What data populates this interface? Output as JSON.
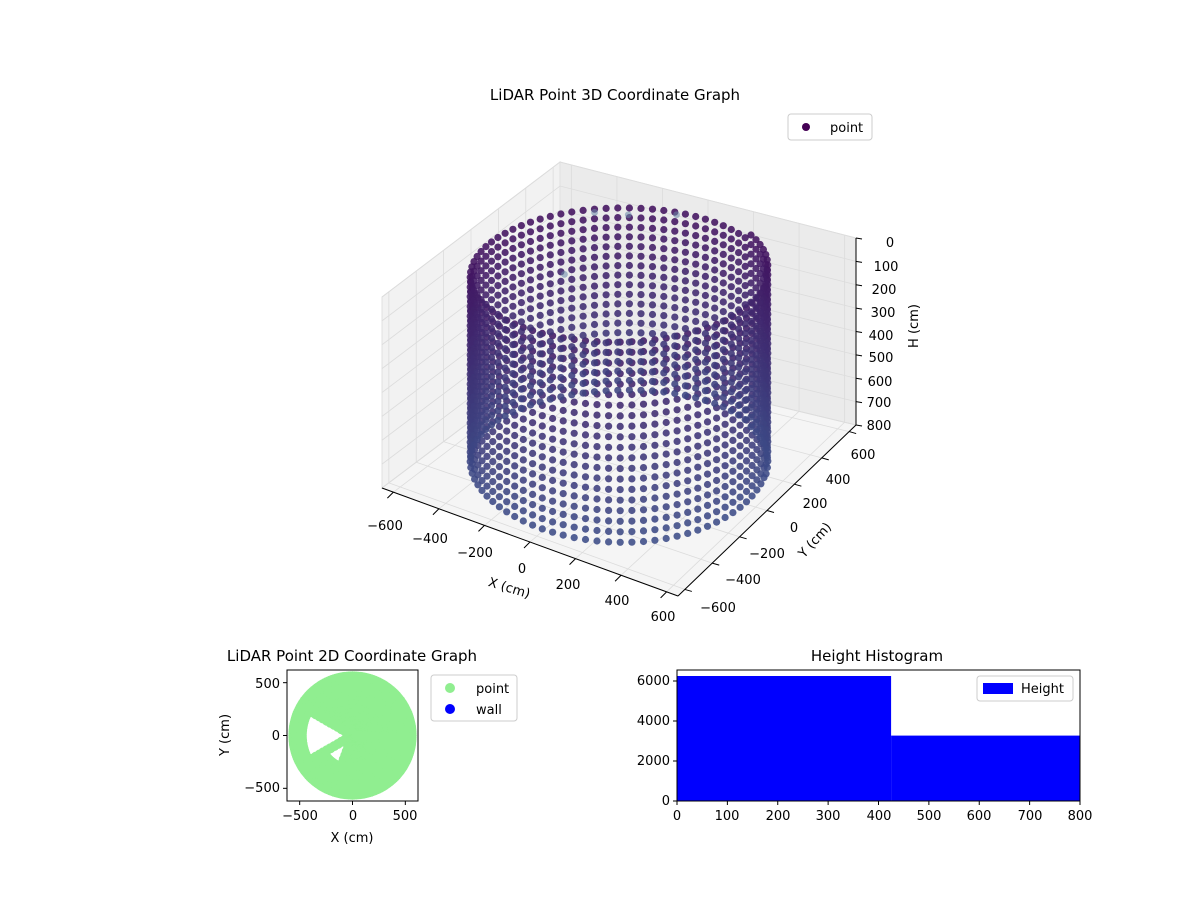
{
  "figure": {
    "chart3d": {
      "title": "LiDAR Point 3D Coordinate Graph",
      "xlabel": "X (cm)",
      "ylabel": "Y (cm)",
      "zlabel": "H (cm)",
      "legend": "point",
      "xticks": [
        "−600",
        "−400",
        "−200",
        "0",
        "200",
        "400",
        "600"
      ],
      "yticks": [
        "−600",
        "−400",
        "−200",
        "0",
        "200",
        "400",
        "600"
      ],
      "zticks": [
        "0",
        "100",
        "200",
        "300",
        "400",
        "500",
        "600",
        "700",
        "800"
      ]
    },
    "chart2d": {
      "title": "LiDAR Point 2D Coordinate Graph",
      "xlabel": "X (cm)",
      "ylabel": "Y (cm)",
      "legend": [
        "point",
        "wall"
      ],
      "xticks": [
        "−500",
        "0",
        "500"
      ],
      "yticks": [
        "500",
        "0",
        "−500"
      ]
    },
    "hist": {
      "title": "Height Histogram",
      "legend": "Height",
      "xticks": [
        "0",
        "100",
        "200",
        "300",
        "400",
        "500",
        "600",
        "700",
        "800"
      ],
      "yticks": [
        "0",
        "2000",
        "4000",
        "6000"
      ]
    }
  },
  "colors": {
    "point3d": "#440154",
    "point2d": "#90ee90",
    "wall": "#0000ff",
    "hist": "#0000ff"
  },
  "chart_data": [
    {
      "type": "scatter",
      "title": "LiDAR Point 3D Coordinate Graph",
      "xlabel": "X (cm)",
      "ylabel": "Y (cm)",
      "zlabel": "H (cm)",
      "xlim": [
        -650,
        650
      ],
      "ylim": [
        -650,
        650
      ],
      "zlim": [
        0,
        800
      ],
      "zaxis_inverted": true,
      "colormap": "viridis",
      "legend_position": "top-right",
      "description_shape": "cylindrical wall of points, radius about 560 cm, heights 0 to 800 cm",
      "series": [
        {
          "name": "point",
          "radius": 560,
          "height_range": [
            0,
            800
          ]
        }
      ],
      "outliers": [
        {
          "x": -360,
          "y": 420,
          "h": 40
        },
        {
          "x": -260,
          "y": 500,
          "h": 60
        },
        {
          "x": -60,
          "y": 520,
          "h": 20
        },
        {
          "x": -420,
          "y": 300,
          "h": 260
        }
      ]
    },
    {
      "type": "scatter",
      "title": "LiDAR Point 2D Coordinate Graph",
      "xlabel": "X (cm)",
      "ylabel": "Y (cm)",
      "xlim": [
        -620,
        620
      ],
      "ylim": [
        -620,
        620
      ],
      "legend_position": "outside-right",
      "series": [
        {
          "name": "point",
          "radius": 560
        },
        {
          "name": "wall",
          "values": []
        }
      ]
    },
    {
      "type": "bar",
      "title": "Height Histogram",
      "xlim": [
        0,
        800
      ],
      "ylim": [
        0,
        6550
      ],
      "legend_position": "top-right",
      "series": [
        {
          "name": "Height",
          "bins": [
            {
              "from": 0,
              "to": 425,
              "count": 6250
            },
            {
              "from": 425,
              "to": 800,
              "count": 3270
            }
          ]
        }
      ]
    }
  ]
}
